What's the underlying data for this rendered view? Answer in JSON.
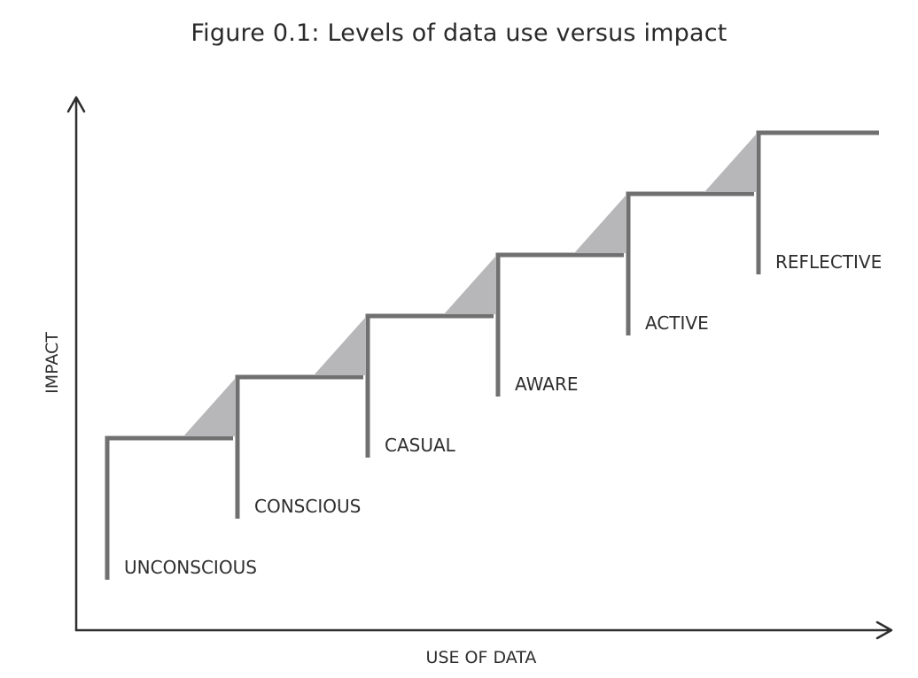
{
  "title": "Figure 0.1: Levels of data use versus impact",
  "axes": {
    "x_label": "USE OF DATA",
    "y_label": "IMPACT"
  },
  "steps": [
    {
      "label": "UNCONSCIOUS",
      "level": 1
    },
    {
      "label": "CONSCIOUS",
      "level": 2
    },
    {
      "label": "CASUAL",
      "level": 3
    },
    {
      "label": "AWARE",
      "level": 4
    },
    {
      "label": "ACTIVE",
      "level": 5
    },
    {
      "label": "REFLECTIVE",
      "level": 6
    }
  ],
  "colors": {
    "step_line": "#707070",
    "wedge": "#b7b7b9",
    "axis": "#2e2e2e",
    "text": "#2a2a2a"
  }
}
